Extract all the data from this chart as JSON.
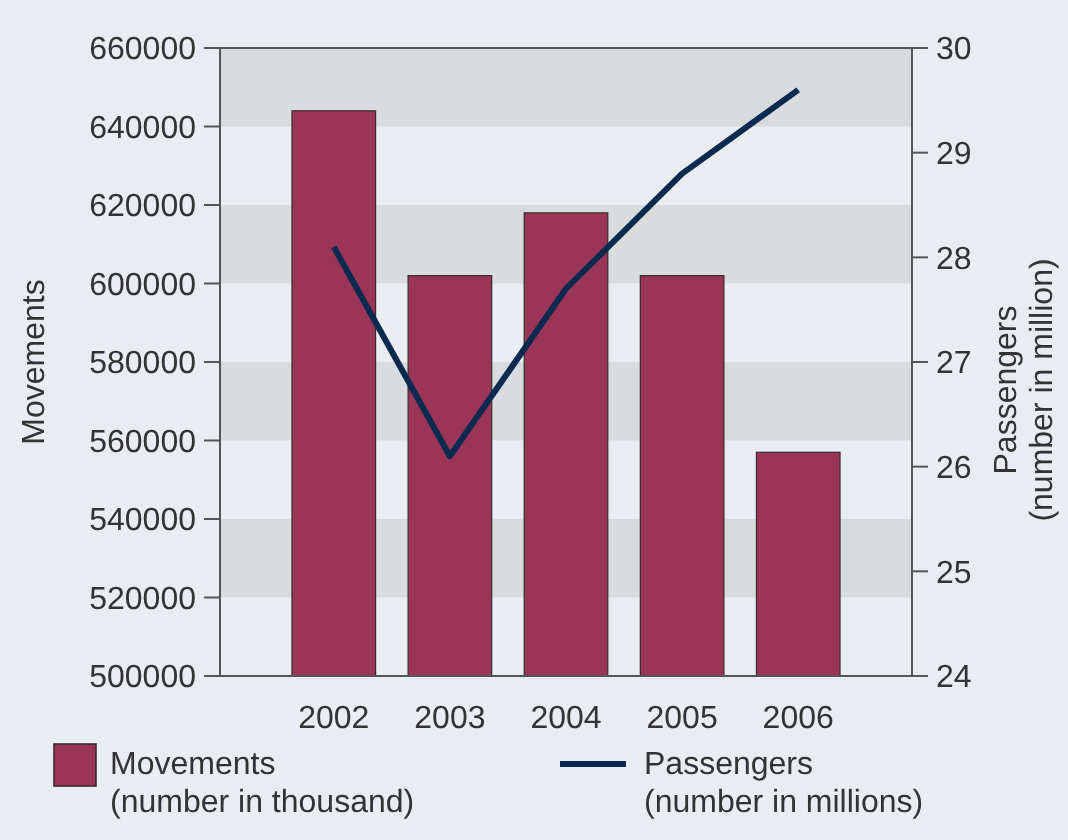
{
  "chart_data": {
    "type": "bar",
    "ylabel": "Movements",
    "y2label": "Passengers\n(number in million)",
    "categories": [
      "2002",
      "2003",
      "2004",
      "2005",
      "2006"
    ],
    "series": [
      {
        "name": "Movements\n(number in thousand)",
        "color": "#9b3558",
        "values": [
          644000,
          602000,
          618000,
          602000,
          557000
        ]
      },
      {
        "name": "Passengers\n(number in millions)",
        "type": "line",
        "axis": "y2",
        "color": "#0a2a50",
        "values": [
          28.1,
          26.1,
          27.7,
          28.8,
          29.6
        ]
      }
    ],
    "ylim": [
      500000,
      660000
    ],
    "yticks": [
      500000,
      520000,
      540000,
      560000,
      580000,
      600000,
      620000,
      640000,
      660000
    ],
    "y2lim": [
      24,
      30
    ],
    "y2ticks": [
      24,
      25,
      26,
      27,
      28,
      29,
      30
    ],
    "bands": [
      {
        "axis": "y",
        "from": 640000,
        "to": 660000,
        "color": "#d9dcdf"
      },
      {
        "axis": "y",
        "from": 600000,
        "to": 620000,
        "color": "#d9dcdf"
      },
      {
        "axis": "y",
        "from": 560000,
        "to": 580000,
        "color": "#d9dcdf"
      },
      {
        "axis": "y",
        "from": 520000,
        "to": 540000,
        "color": "#d9dcdf"
      }
    ],
    "legend": "bottom"
  }
}
